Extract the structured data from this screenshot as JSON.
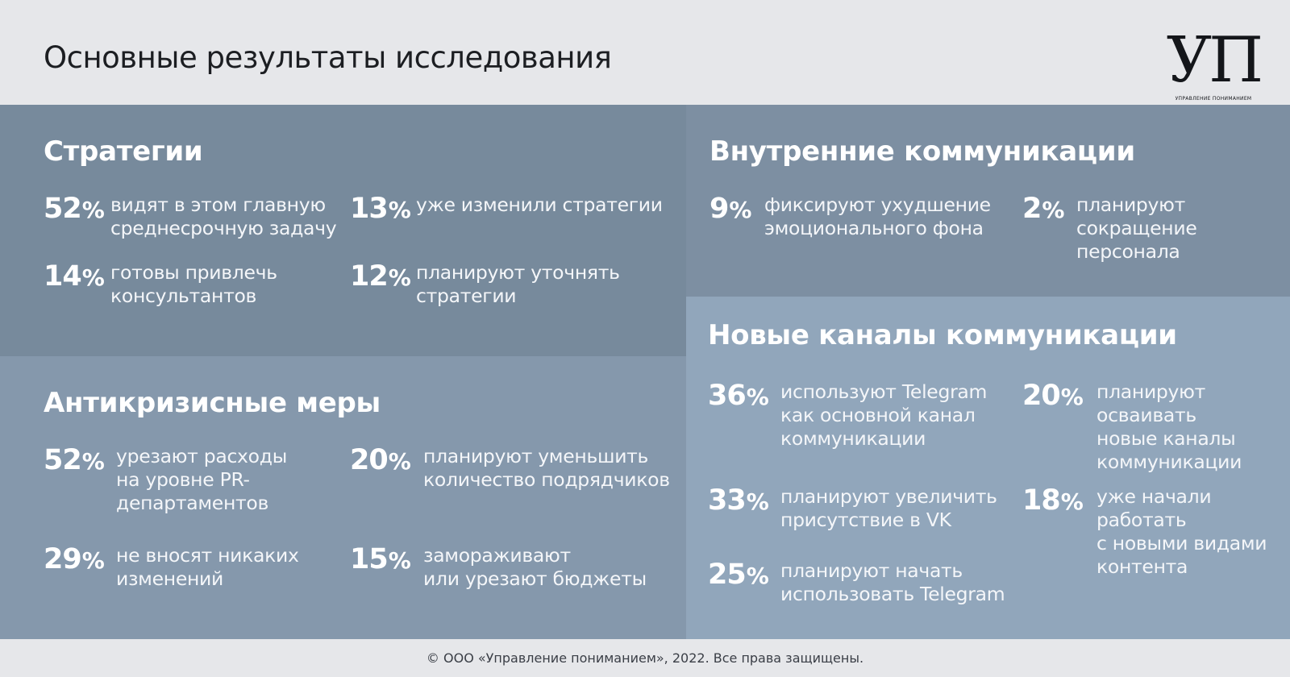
{
  "page_title": "Основные результаты исследования",
  "logo": {
    "mark": "УП",
    "subtitle": "Управление пониманием"
  },
  "sections": {
    "strategy": {
      "title": "Стратегии",
      "stats": [
        {
          "num": "52",
          "unit": "%",
          "text": "видят в этом главную\nсреднесрочную задачу"
        },
        {
          "num": "13",
          "unit": "%",
          "text": "уже изменили стратегии"
        },
        {
          "num": "14",
          "unit": "%",
          "text": "готовы привлечь\nконсультантов"
        },
        {
          "num": "12",
          "unit": "%",
          "text": "планируют уточнять\nстратегии"
        }
      ]
    },
    "internal": {
      "title": "Внутренние коммуникации",
      "stats": [
        {
          "num": "9",
          "unit": "%",
          "text": "фиксируют ухудшение\nэмоционального фона"
        },
        {
          "num": "2",
          "unit": "%",
          "text": "планируют\nсокращение\nперсонала"
        }
      ]
    },
    "anticrisis": {
      "title": "Антикризисные меры",
      "stats": [
        {
          "num": "52",
          "unit": "%",
          "text": "урезают расходы\nна уровне PR-\nдепартаментов"
        },
        {
          "num": "20",
          "unit": "%",
          "text": "планируют уменьшить\nколичество подрядчиков"
        },
        {
          "num": "29",
          "unit": "%",
          "text": "не вносят никаких\nизменений"
        },
        {
          "num": "15",
          "unit": "%",
          "text": "замораживают\nили урезают бюджеты"
        }
      ]
    },
    "channels": {
      "title": "Новые каналы коммуникации",
      "stats": [
        {
          "num": "36",
          "unit": "%",
          "text": "используют Telegram\nкак основной канал\nкоммуникации"
        },
        {
          "num": "20",
          "unit": "%",
          "text": "планируют\nосваивать\nновые каналы\nкоммуникации"
        },
        {
          "num": "33",
          "unit": "%",
          "text": "планируют увеличить\nприсутствие в VK"
        },
        {
          "num": "18",
          "unit": "%",
          "text": "уже начали\nработать\nс новыми видами\nконтента"
        },
        {
          "num": "25",
          "unit": "%",
          "text": "планируют начать\nиспользовать Telegram"
        }
      ]
    }
  },
  "footer": "© ООО «Управление пониманием», 2022. Все права защищены."
}
